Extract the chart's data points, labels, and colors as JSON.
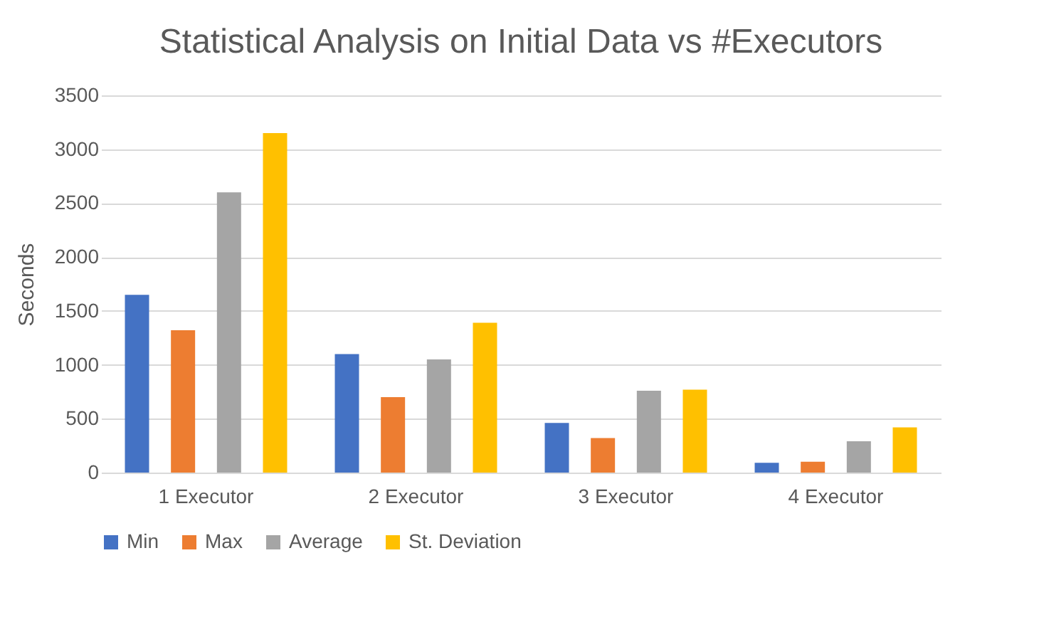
{
  "chart_data": {
    "type": "bar",
    "title": "Statistical Analysis on Initial Data vs #Executors",
    "ylabel": "Seconds",
    "categories": [
      "1 Executor",
      "2 Executor",
      "3 Executor",
      "4 Executor"
    ],
    "series": [
      {
        "name": "Min",
        "color": "#4472c4",
        "values": [
          1650,
          1100,
          460,
          90
        ]
      },
      {
        "name": "Max",
        "color": "#ed7d31",
        "values": [
          1320,
          700,
          320,
          100
        ]
      },
      {
        "name": "Average",
        "color": "#a5a5a5",
        "values": [
          2600,
          1050,
          760,
          290
        ]
      },
      {
        "name": "St. Deviation",
        "color": "#ffc000",
        "values": [
          3150,
          1390,
          770,
          420
        ]
      }
    ],
    "ylim": [
      0,
      3500
    ],
    "yticks": [
      0,
      500,
      1000,
      1500,
      2000,
      2500,
      3000,
      3500
    ],
    "grid": "y",
    "legend": "bottom"
  }
}
